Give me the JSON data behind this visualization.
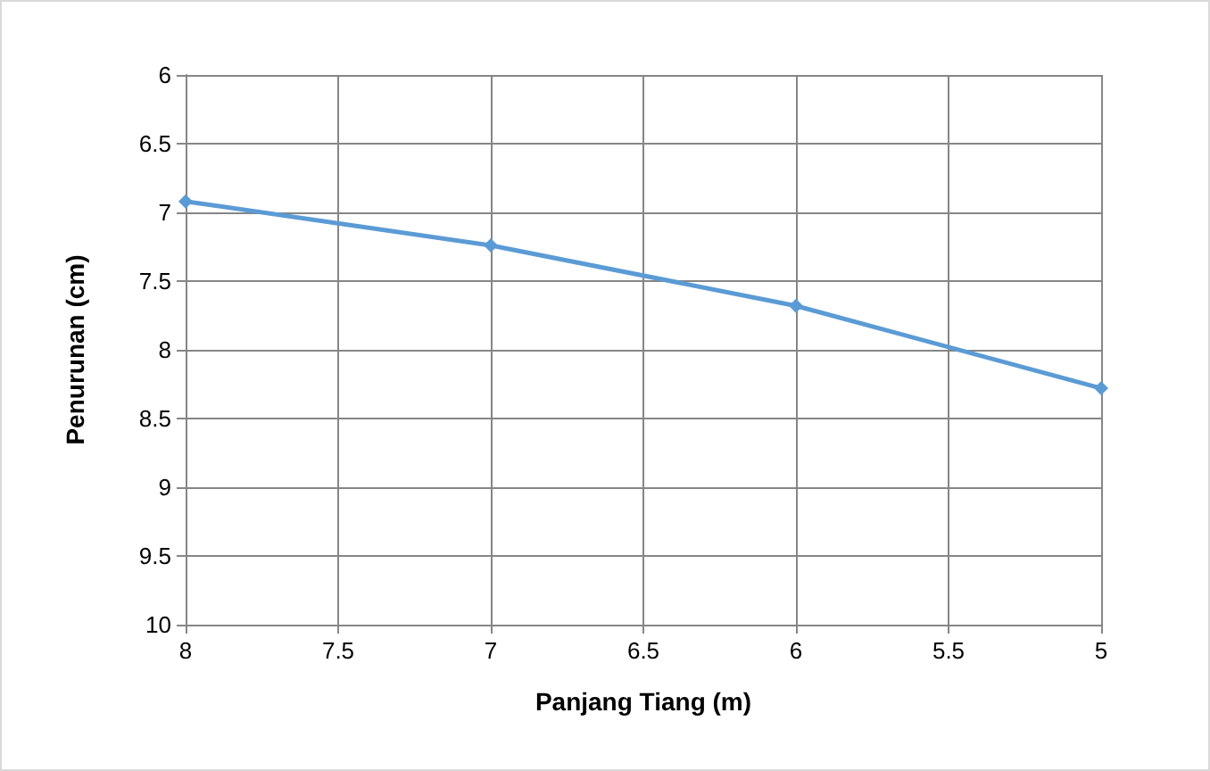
{
  "chart_data": {
    "type": "line",
    "xlabel": "Panjang Tiang (m)",
    "ylabel": "Penurunan (cm)",
    "x": [
      8,
      7,
      6,
      5
    ],
    "series": [
      {
        "color": "#5b9bd5",
        "values": [
          6.92,
          7.24,
          7.68,
          8.28
        ]
      }
    ],
    "xlim": [
      8,
      5
    ],
    "xticks": [
      8,
      7.5,
      7,
      6.5,
      6,
      5.5,
      5
    ],
    "ylim": [
      10,
      6
    ],
    "yticks": [
      6,
      6.5,
      7,
      7.5,
      8,
      8.5,
      9,
      9.5,
      10
    ],
    "grid": true,
    "marker": "diamond",
    "line_style": "solid"
  }
}
